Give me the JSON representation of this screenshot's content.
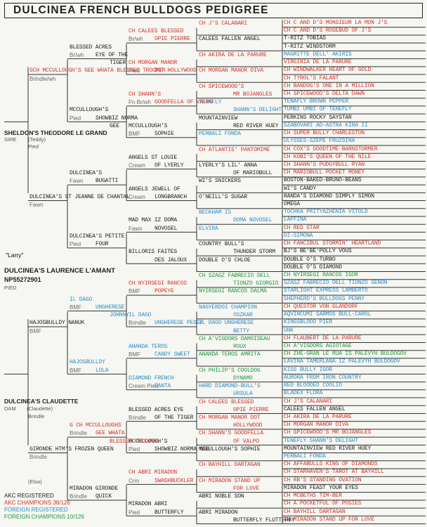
{
  "title": "DULCINEA FRENCH BULLDOGS PEDIGREE",
  "colors": {
    "black": "#1e1e1e",
    "red": "#d0362b",
    "blue": "#2b8fc8",
    "green": "#1f9a3e",
    "gray": "#6a6a6a"
  },
  "nickname": "\"Larry\"",
  "subject_name": "DULCINEA'S LAURENCE L'AMANT",
  "subject_reg": "NP55272901",
  "subject_color": "PIED",
  "legend": {
    "akc_registered": "AKC REGISTERED",
    "akc_champions": "AKC CHAMPIONS  38/126",
    "foreign_registered": "FOREIGN REGISTERED",
    "foreign_champions": "FOREIGN  CHAMPIONS   10/126"
  },
  "entries": [
    {
      "text": "CH C AND D'S MONSIEUR LA MON J'S",
      "c": "r"
    },
    {
      "text": "CH C AND D'S ROSEBUD OF J'S",
      "c": "r"
    },
    {
      "text": "T-RITZ TOBIAS",
      "c": "k"
    },
    {
      "text": "T-RITZ WINDSTORM",
      "c": "k"
    },
    {
      "text": "MAGRITTE DELL' AKIRIS",
      "c": "b"
    },
    {
      "text": "VIRGINIA DE LA PARURE",
      "c": "r"
    },
    {
      "text": "CH WINDWALKER HEART OF GOLD",
      "c": "r"
    },
    {
      "text": "CH TYROL'S FALANT",
      "c": "r"
    },
    {
      "text": "CH BANDOG'S ONE IN A MILLION",
      "c": "r"
    },
    {
      "text": "CH SPICEWOOD'S DELTA DAWN",
      "c": "r"
    },
    {
      "text": "TENAFLY BROWN PEPPER",
      "c": "b"
    },
    {
      "text": "TUMBI UMBI OF TENEFLY",
      "c": "b"
    },
    {
      "text": "PERKINS ROCKY SAYSTAR",
      "c": "k"
    },
    {
      "text": "SZABOVARI AD-ASTRA KIRA II",
      "c": "b"
    },
    {
      "text": "CH SUPER BULLY CHARLESTON",
      "c": "r"
    },
    {
      "text": "ULYSSES-SZEPE FRUZSINA",
      "c": "b"
    },
    {
      "text": "CH COX'S GOODTIME BARNSTORMER",
      "c": "r"
    },
    {
      "text": "CH KOBI'S QUEEN OF THE NILE",
      "c": "r"
    },
    {
      "text": "CH SHANN'S PUDGYBULL RYAN",
      "c": "r"
    },
    {
      "text": "CH MARIOBULL POCKET MONEY",
      "c": "r"
    },
    {
      "text": "BOSTON-BAKED-BRUNO-BEANS",
      "c": "k"
    },
    {
      "text": "WI'S CANDY",
      "c": "k"
    },
    {
      "text": "RANDA'S DIAMOND SIMPLY SIMON",
      "c": "k"
    },
    {
      "text": "OMEGA",
      "c": "k"
    },
    {
      "text": "TOCHKA PRITYAZHENIA VITOLD",
      "c": "b"
    },
    {
      "text": "LAFFINA",
      "c": "b"
    },
    {
      "text": "CH RED STAR",
      "c": "r"
    },
    {
      "text": "OI-SIMONA",
      "c": "b"
    },
    {
      "text": "CH FANCIBUL STORMIN' HEARTLAND",
      "c": "r"
    },
    {
      "text": "BJ'S BE'BE'POLLY VOUS",
      "c": "k"
    },
    {
      "text": "DOUBLE O'S TURBO",
      "c": "k"
    },
    {
      "text": "DOUBLE O'S DIAMOND",
      "c": "k"
    },
    {
      "text": "CH NYIRSEGI RANCOS IGOR",
      "c": "g"
    },
    {
      "text": "SZASZ FABRECIO DELL TIONZO SENON",
      "c": "b"
    },
    {
      "text": "STARLIGHT EXPRESS LAMBERTO",
      "c": "b"
    },
    {
      "text": "SHEPHERD'S BULLDOGS PENNY",
      "c": "b"
    },
    {
      "text": "CH QUESTOR VON GLANDORF",
      "c": "r"
    },
    {
      "text": "AQVINCUMI SARMOS BULL-CAROL",
      "c": "b"
    },
    {
      "text": "KINGSBLOOD PIER",
      "c": "b"
    },
    {
      "text": "UNK",
      "c": "b"
    },
    {
      "text": "CH FLAUBERT DE LA PARURE",
      "c": "r"
    },
    {
      "text": "CH A'VIGDORS AGIOTAGE",
      "c": "g"
    },
    {
      "text": "CH ZHE-GRAN LE RUA IS PALEVYH BULDOGOV",
      "c": "g"
    },
    {
      "text": "LAVINA TAMERLANA IZ PALEVYH BULDOGOV",
      "c": "b"
    },
    {
      "text": "KISS BULLY IGOR",
      "c": "b"
    },
    {
      "text": "AURORA FROM IRON COUNTRY",
      "c": "b"
    },
    {
      "text": "RED BLOODED COOLIO",
      "c": "b"
    },
    {
      "text": "BLADEX FLORA",
      "c": "b"
    },
    {
      "text": "CH J'S CALANARI",
      "c": "r"
    },
    {
      "text": "CALEES FALLEN ANGEL",
      "c": "k"
    },
    {
      "text": "CH AKIRA DE LA PARURE",
      "c": "r"
    },
    {
      "text": "CH MORGAN MANOR DIVA",
      "c": "r"
    },
    {
      "text": "CH SPICEWOOD'S MR BOJANGLES",
      "c": "r"
    },
    {
      "text": "TENEFLY SHANN'S DELIGHT",
      "c": "b"
    },
    {
      "text": "MOUNTAINVIEW RED RIVER HUEY",
      "c": "k"
    },
    {
      "text": "PERBALI FONDA",
      "c": "b"
    },
    {
      "text": "CH AFFABULLS KING OF DIAMONDS",
      "c": "r"
    },
    {
      "text": "CH STARHAVEN'S TAROT AT BAYHILL",
      "c": "r"
    },
    {
      "text": "CH RB'S STANDING OVATION",
      "c": "r"
    },
    {
      "text": "MIRADON FEAST YOUR EYES",
      "c": "k"
    },
    {
      "text": "CH MCBETHS TIM-BER",
      "c": "r"
    },
    {
      "text": "CH A POCKETFUL OF POSIES",
      "c": "r"
    },
    {
      "text": "CH BAYHILL DARTAGAN",
      "c": "r"
    },
    {
      "text": "CH MIRADON STAND UP FOR LOVE",
      "c": "r"
    }
  ],
  "gen3": [
    {
      "l1": "CH J'S CALANARI",
      "l2": "",
      "c": "r"
    },
    {
      "l1": "CALEES FALLEN ANGEL",
      "l2": "",
      "c": "k"
    },
    {
      "l1": "CH AKIRA DE LA PARURE",
      "l2": "",
      "c": "r"
    },
    {
      "l1": "CH MORGAN MANOR DIVA",
      "l2": "",
      "c": "r"
    },
    {
      "l1": "CH SPICEWOOD'S",
      "l2": "MR BOJANGLES",
      "c": "r"
    },
    {
      "l1": "TENAFLY",
      "l2": "SHANN'S DELIGHT",
      "c": "b"
    },
    {
      "l1": "MOUNTAINVIEW",
      "l2": "RED RIVER HUEY",
      "c": "k"
    },
    {
      "l1": "PERBALI FONDA",
      "l2": "",
      "c": "b"
    },
    {
      "l1": "CH ATLANTIS' PANTOMIME",
      "l2": "",
      "c": "r"
    },
    {
      "l1": "LYERLY'S LIL' ANNA",
      "l2": "OF MARIOBULL",
      "c": "k"
    },
    {
      "l1": "WI'S SNICKERS",
      "l2": "",
      "c": "k"
    },
    {
      "l1": "O'NEILL'S SUGAR",
      "l2": "",
      "c": "k"
    },
    {
      "l1": "BECKHAM IS",
      "l2": "DOMA NOVOSEL",
      "c": "b"
    },
    {
      "l1": "ELVIRA",
      "l2": "",
      "c": "b"
    },
    {
      "l1": "COUNTRY BULL'S",
      "l2": "THUNDER STORM",
      "c": "k"
    },
    {
      "l1": "DOUBLE O'S CHLOE",
      "l2": "",
      "c": "k"
    },
    {
      "l1": "CH SZASZ FABRECIO DELL",
      "l2": "TIONZO GIORGIO",
      "c": "g"
    },
    {
      "l1": "NYIRSEGI RANCOS DALMA",
      "l2": "",
      "c": "g"
    },
    {
      "l1": "NAGYERDOI CHAMPION",
      "l2": "OSZKAR",
      "c": "b"
    },
    {
      "l1": "IL DAGO UNGHERESE",
      "l2": "BETTY",
      "c": "b"
    },
    {
      "l1": "CH A'VIGDORS DAMOISEAU",
      "l2": "ROUX",
      "c": "g"
    },
    {
      "l1": "ANANDA TEROS AMRITA",
      "l2": "",
      "c": "g"
    },
    {
      "l1": "CH PHILIP'S COOLDOG",
      "l2": "DYNAMO",
      "c": "g"
    },
    {
      "l1": "HARD DIAMOND-BULL'S",
      "l2": "URSULA",
      "c": "b"
    },
    {
      "l1": "CH CALEES BLESSED",
      "l2": "OPIE PIERRE",
      "c": "r"
    },
    {
      "l1": "CH MORGAN MANOR DOT",
      "l2": "HOLLYWOOD",
      "c": "r"
    },
    {
      "l1": "CH SHANN'S GOODFELLA",
      "l2": "OF VALPO",
      "c": "r"
    },
    {
      "l1": "MCCULLOUGH'S SOPHIE",
      "l2": "",
      "c": "k"
    },
    {
      "l1": "CH BAYHILL DARTAGAN",
      "l2": "",
      "c": "r"
    },
    {
      "l1": "CH MIRADON STAND UP",
      "l2": "FOR LOVE",
      "c": "r"
    },
    {
      "l1": "ABRI NOBLE SON",
      "l2": "",
      "c": "k"
    },
    {
      "l1": "ABRI MIRADON",
      "l2": "BUTTERFLY FLUTTERBY",
      "c": "k"
    }
  ],
  "gen2": [
    {
      "l1": "CH CALEES BLESSED",
      "l2": "OPIE PIERRE",
      "reg": "Br/wh",
      "c": "r"
    },
    {
      "l1": "CH MORGAN MANOR",
      "l2": "DOT HOLLYWOOD",
      "reg": "Pied",
      "c": "r"
    },
    {
      "l1": "CH SHANN'S",
      "l2": "GOODFELLA OF VALPO",
      "reg": "Fn Br/wh",
      "c": "r"
    },
    {
      "l1": "MCCULLOUGH'S",
      "l2": "SOPHIE",
      "reg": "BMF",
      "c": "k"
    },
    {
      "l1": "ANGELS ST LOUIE",
      "l2": "OF LYERLY",
      "reg": "Cream",
      "c": "k"
    },
    {
      "l1": "ANGELS JEWELL OF",
      "l2": "LONGBRANCH",
      "reg": "Cream",
      "c": "k"
    },
    {
      "l1": "MAD MAX IZ DOMA",
      "l2": "NOVOSEL",
      "reg": "Fawn",
      "c": "k"
    },
    {
      "l1": "BILLORIS FAITES",
      "l2": "DES JALOUX",
      "reg": "",
      "c": "k"
    },
    {
      "l1": "CH NYIRSEGI RANCOS",
      "l2": "POPEYE",
      "reg": "BMF",
      "c": "r"
    },
    {
      "l1": "IL DAGO",
      "l2": "UNGHERESE PEGGY",
      "reg": "Brindle",
      "c": "b"
    },
    {
      "l1": "ANANDA TEROS",
      "l2": "CANDY SWEET",
      "reg": "BMF",
      "c": "b"
    },
    {
      "l1": "DIAMOND FRENCH",
      "l2": "FANTA",
      "reg": "Cream Pied",
      "c": "b"
    },
    {
      "l1": "BLESSED ACRES EYE",
      "l2": "OF THE TIGER",
      "reg": "Brindle",
      "c": "k"
    },
    {
      "l1": "MCCULLOUGH'S",
      "l2": "SHOWBIZ NORMA GEE",
      "reg": "Pied",
      "c": "k"
    },
    {
      "l1": "CH ABRI MIRADON",
      "l2": "SWASHBUCKLER",
      "reg": "Crm",
      "c": "r"
    },
    {
      "l1": "MIRADON ABRI",
      "l2": "BUTTERFLY",
      "reg": "Pied",
      "c": "k"
    }
  ],
  "gen1": [
    {
      "l1": "BLESSED ACRES",
      "l2": "EYE OF THE",
      "l3": "TIGER",
      "reg": "Br/wh",
      "c": "k"
    },
    {
      "l1": "MCCULLOUGH'S",
      "l2": "SHOWBIZ NORMA",
      "l3": "GEE",
      "reg": "Pied",
      "c": "k"
    },
    {
      "l1": "DULCINEA'S",
      "l2": "BUGATTI",
      "l3": "",
      "reg": "Fawn",
      "c": "k"
    },
    {
      "l1": "DULCINEA'S PETITE",
      "l2": "FOUR",
      "l3": "",
      "reg": "Pied",
      "c": "k"
    },
    {
      "l1": "IL DAGO",
      "l2": "UNGHERESE",
      "l3": "JOHNNY",
      "reg": "BMF",
      "c": "b"
    },
    {
      "l1": "HAJOSBULLDY",
      "l2": "LOLA",
      "l3": "",
      "reg": "BMF",
      "c": "b"
    },
    {
      "l1": "G CH MCCULLOUGHS",
      "l2": "GEE WHATA",
      "l3": "BLESSED TROOPER",
      "reg": "Brindle",
      "c": "r"
    },
    {
      "l1": "MIRADON GIRONDE",
      "l2": "QUICK",
      "l3": "",
      "reg": "Brindle",
      "c": "k"
    }
  ],
  "gen0": [
    {
      "text": "GCH MCCULLOUGH'S GEE WHATA BLESSED TROOPER",
      "reg": "Brindle/wh",
      "c": "r"
    },
    {
      "text": "DULCINEA'S ST JEANNE DE CHANTAL",
      "reg": "Fawn",
      "c": "k"
    },
    {
      "text": "HAJOSBULLDY NANUK",
      "reg": "BMF",
      "c": "k"
    },
    {
      "text": "GIRONDE HTM'S FROZEN QUEEN",
      "reg": "Brindle",
      "c": "k"
    }
  ],
  "parents": [
    {
      "text": "SHELDON'S THEODORE LE GRAND",
      "role": "SIRE",
      "call": "(Teddy)",
      "reg": "Pied"
    },
    {
      "text": "DULCINEA'S CLAUDETTE",
      "role": "DAM",
      "call": "(Claudette)",
      "reg": "Brindle",
      "call2": "(Elsa)"
    }
  ]
}
